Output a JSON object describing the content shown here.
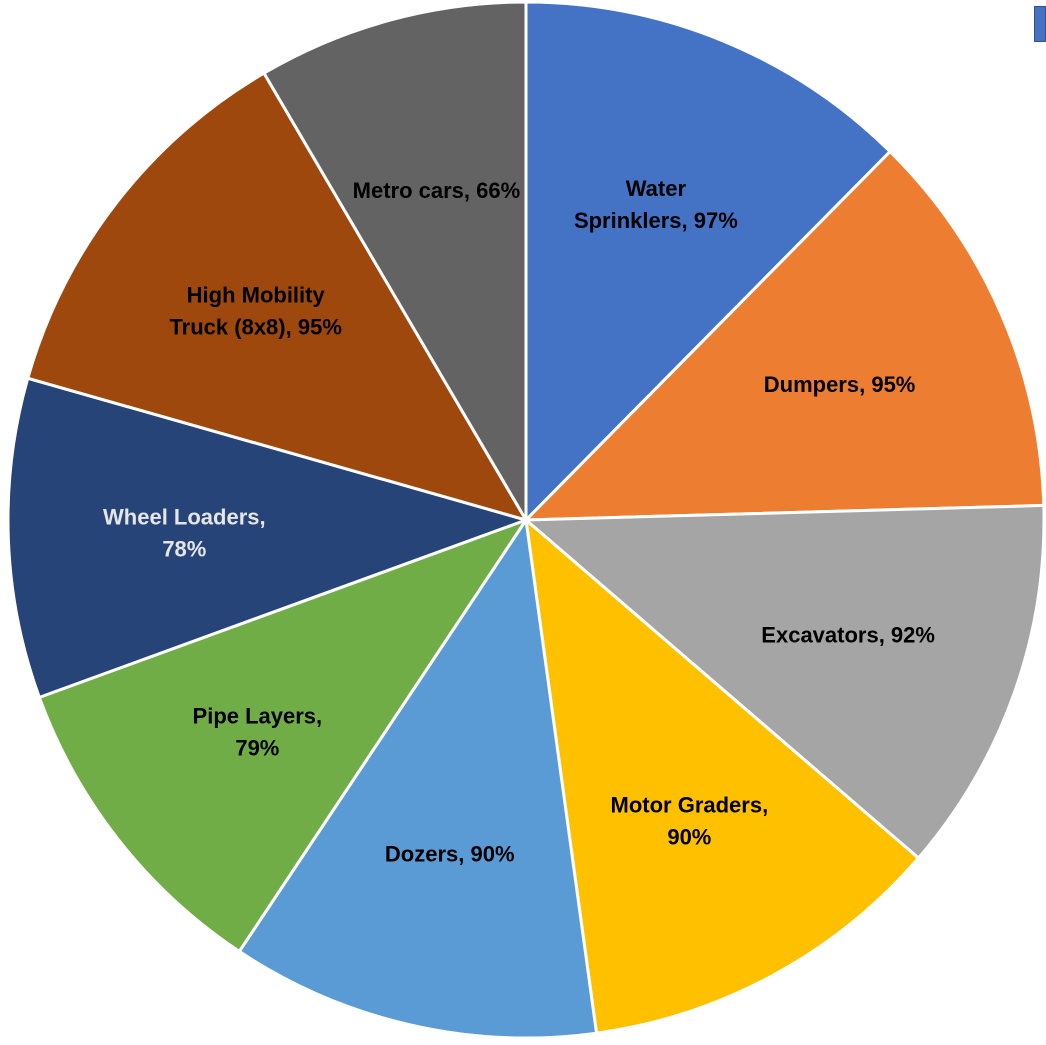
{
  "chart_data": {
    "type": "pie",
    "title": "",
    "slices": [
      {
        "label_lines": [
          "Water",
          "Sprinklers, 97%"
        ],
        "value": 97,
        "color": "#4472C4",
        "text_color": "#000000"
      },
      {
        "label_lines": [
          "Dumpers, 95%"
        ],
        "value": 95,
        "color": "#ED7D31",
        "text_color": "#000000"
      },
      {
        "label_lines": [
          "Excavators, 92%"
        ],
        "value": 92,
        "color": "#A5A5A5",
        "text_color": "#000000"
      },
      {
        "label_lines": [
          "Motor Graders,",
          "90%"
        ],
        "value": 90,
        "color": "#FFC000",
        "text_color": "#000000"
      },
      {
        "label_lines": [
          "Dozers, 90%"
        ],
        "value": 90,
        "color": "#5B9BD5",
        "text_color": "#000000"
      },
      {
        "label_lines": [
          "Pipe Layers,",
          "79%"
        ],
        "value": 79,
        "color": "#70AD47",
        "text_color": "#000000"
      },
      {
        "label_lines": [
          "Wheel Loaders,",
          "78%"
        ],
        "value": 78,
        "color": "#264478",
        "text_color": "#E6E6E6"
      },
      {
        "label_lines": [
          "High Mobility",
          "Truck (8x8), 95%"
        ],
        "value": 95,
        "color": "#9E480E",
        "text_color": "#000000"
      },
      {
        "label_lines": [
          "Metro cars, 66%"
        ],
        "value": 66,
        "color": "#636363",
        "text_color": "#000000"
      }
    ]
  },
  "legend_swatch": {
    "color": "#4472C4"
  }
}
